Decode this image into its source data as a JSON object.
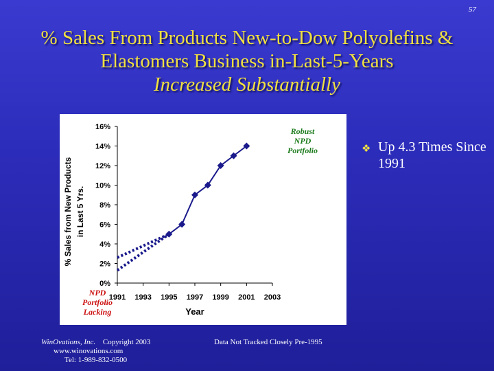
{
  "slide_number": "57",
  "title": {
    "line1": "% Sales From Products New-to-Dow Polyolefins &",
    "line2": "Elastomers Business in-Last-5-Years",
    "line3": "Increased Substantially"
  },
  "bullet": {
    "icon": "diamond-bullet-icon",
    "text": "Up 4.3 Times Since 1991"
  },
  "annotations": {
    "robust": "Robust NPD Portfolio",
    "lacking": "NPD Portfolio Lacking"
  },
  "footer": {
    "company": "WinOvations, Inc.",
    "copyright": "Copyright 2003",
    "website": "www.winovations.com",
    "phone": "Tel:  1-989-832-0500",
    "note": "Data Not Tracked Closely Pre-1995"
  },
  "colors": {
    "background": "#2e2ec0",
    "title": "#f0e040",
    "series": "#1a1a8c",
    "robust_text": "#1a7a1a",
    "lacking_text": "#cc1010"
  },
  "chart_data": {
    "type": "line",
    "xlabel": "Year",
    "ylabel_line1": "% Sales from New Products",
    "ylabel_line2": "in Last 5 Yrs.",
    "xlim": [
      1991,
      2003
    ],
    "ylim": [
      0,
      16
    ],
    "x_ticks": [
      "1991",
      "1993",
      "1995",
      "1997",
      "1999",
      "2001",
      "2003"
    ],
    "y_ticks": [
      "0%",
      "2%",
      "4%",
      "6%",
      "8%",
      "10%",
      "12%",
      "14%",
      "16%"
    ],
    "grid": false,
    "series": [
      {
        "style": "solid-markers",
        "x": [
          1995,
          1996,
          1997,
          1998,
          1999,
          2000,
          2001
        ],
        "y": [
          5,
          6,
          9,
          10,
          12,
          13,
          14
        ]
      },
      {
        "style": "dotted",
        "x": [
          1991,
          1995
        ],
        "y": [
          1.3,
          5
        ]
      },
      {
        "style": "dotted",
        "x": [
          1991,
          1995
        ],
        "y": [
          2.6,
          5
        ]
      }
    ]
  }
}
